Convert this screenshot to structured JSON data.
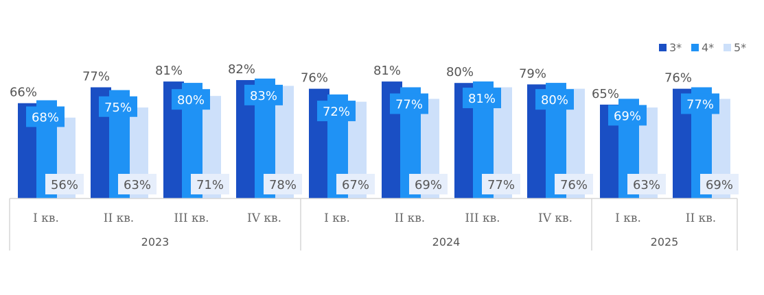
{
  "chart_data": {
    "type": "bar",
    "title": "",
    "xlabel": "",
    "ylabel": "",
    "legend_position": "top-right",
    "grid": false,
    "ylim": [
      0,
      100
    ],
    "colors": [
      "#1a4fc4",
      "#1f92f5",
      "#cde0fa"
    ],
    "label_box_colors": [
      "#ffffff",
      "#1f92f5",
      "#e6eefb"
    ],
    "groups": [
      {
        "year": "2023",
        "categories": [
          "I кв.",
          "II кв.",
          "III кв.",
          "IV кв."
        ]
      },
      {
        "year": "2024",
        "categories": [
          "I кв.",
          "II кв.",
          "III кв.",
          "IV кв."
        ]
      },
      {
        "year": "2025",
        "categories": [
          "I кв.",
          "II кв."
        ]
      }
    ],
    "categories": [
      "I кв.",
      "II кв.",
      "III кв.",
      "IV кв.",
      "I кв.",
      "II кв.",
      "III кв.",
      "IV кв.",
      "I кв.",
      "II кв."
    ],
    "series": [
      {
        "name": "3*",
        "values": [
          66,
          77,
          81,
          82,
          76,
          81,
          80,
          79,
          65,
          76
        ]
      },
      {
        "name": "4*",
        "values": [
          68,
          75,
          80,
          83,
          72,
          77,
          81,
          80,
          69,
          77
        ]
      },
      {
        "name": "5*",
        "values": [
          56,
          63,
          71,
          78,
          67,
          69,
          77,
          76,
          63,
          69
        ]
      }
    ],
    "data_labels": [
      [
        "66%",
        "77%",
        "81%",
        "82%",
        "76%",
        "81%",
        "80%",
        "79%",
        "65%",
        "76%"
      ],
      [
        "68%",
        "75%",
        "80%",
        "83%",
        "72%",
        "77%",
        "81%",
        "80%",
        "69%",
        "77%"
      ],
      [
        "56%",
        "63%",
        "71%",
        "78%",
        "67%",
        "69%",
        "77%",
        "76%",
        "63%",
        "69%"
      ]
    ]
  }
}
